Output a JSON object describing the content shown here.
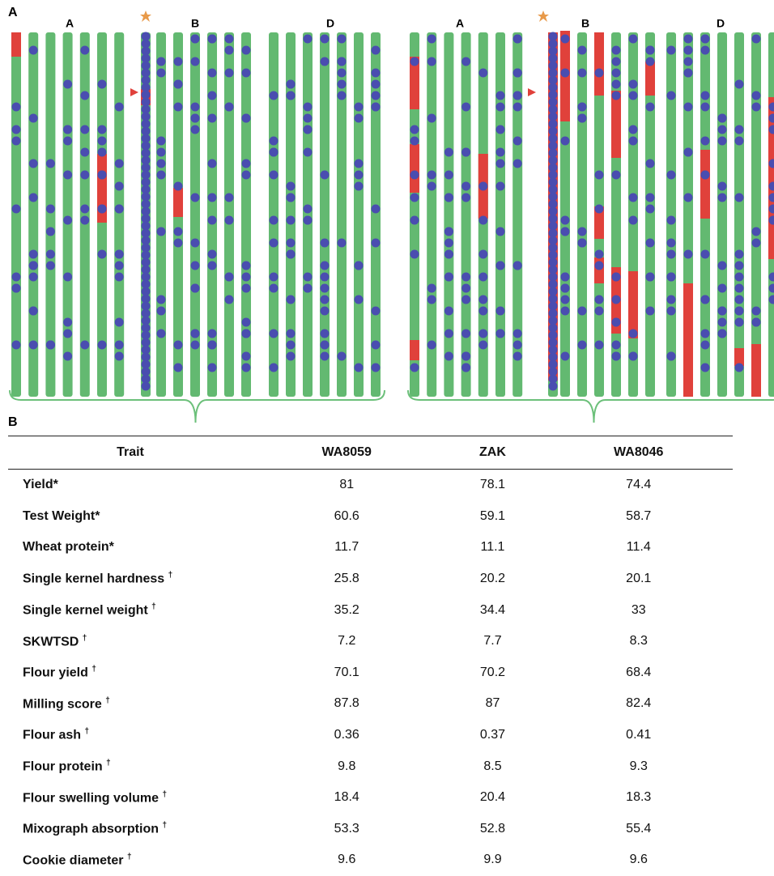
{
  "panel_a": {
    "label": "A",
    "groups": [
      {
        "genomes": [
          "A",
          "B",
          "D"
        ]
      },
      {
        "genomes": [
          "A",
          "B",
          "D"
        ]
      }
    ]
  },
  "panel_b": {
    "label": "B",
    "table": {
      "header": [
        "Trait",
        "WA8059",
        "ZAK",
        "WA8046"
      ],
      "rows": [
        {
          "trait": "Yield*",
          "values": [
            81,
            78.1,
            74.4
          ]
        },
        {
          "trait": "Test Weight*",
          "values": [
            60.6,
            59.1,
            58.7
          ]
        },
        {
          "trait": "Wheat protein*",
          "values": [
            11.7,
            11.1,
            11.4
          ]
        },
        {
          "trait": "Single kernel hardness",
          "mark": "†",
          "values": [
            25.8,
            20.2,
            20.1
          ]
        },
        {
          "trait": "Single kernel weight",
          "mark": "†",
          "values": [
            35.2,
            34.4,
            33
          ]
        },
        {
          "trait": "SKWTSD",
          "mark": "†",
          "values": [
            7.2,
            7.7,
            8.3
          ]
        },
        {
          "trait": "Flour yield",
          "mark": "†",
          "values": [
            70.1,
            70.2,
            68.4
          ]
        },
        {
          "trait": "Milling score",
          "mark": "†",
          "values": [
            87.8,
            87,
            82.4
          ]
        },
        {
          "trait": "Flour ash",
          "mark": "†",
          "values": [
            0.36,
            0.37,
            0.41
          ]
        },
        {
          "trait": "Flour protein",
          "mark": "†",
          "values": [
            9.8,
            8.5,
            9.3
          ]
        },
        {
          "trait": "Flour swelling volume",
          "mark": "†",
          "values": [
            18.4,
            20.4,
            18.3
          ]
        },
        {
          "trait": "Mixograph absorption",
          "mark": "†",
          "values": [
            53.3,
            52.8,
            55.4
          ]
        },
        {
          "trait": "Cookie diameter",
          "mark": "†",
          "values": [
            9.6,
            9.9,
            9.6
          ]
        }
      ]
    }
  }
}
